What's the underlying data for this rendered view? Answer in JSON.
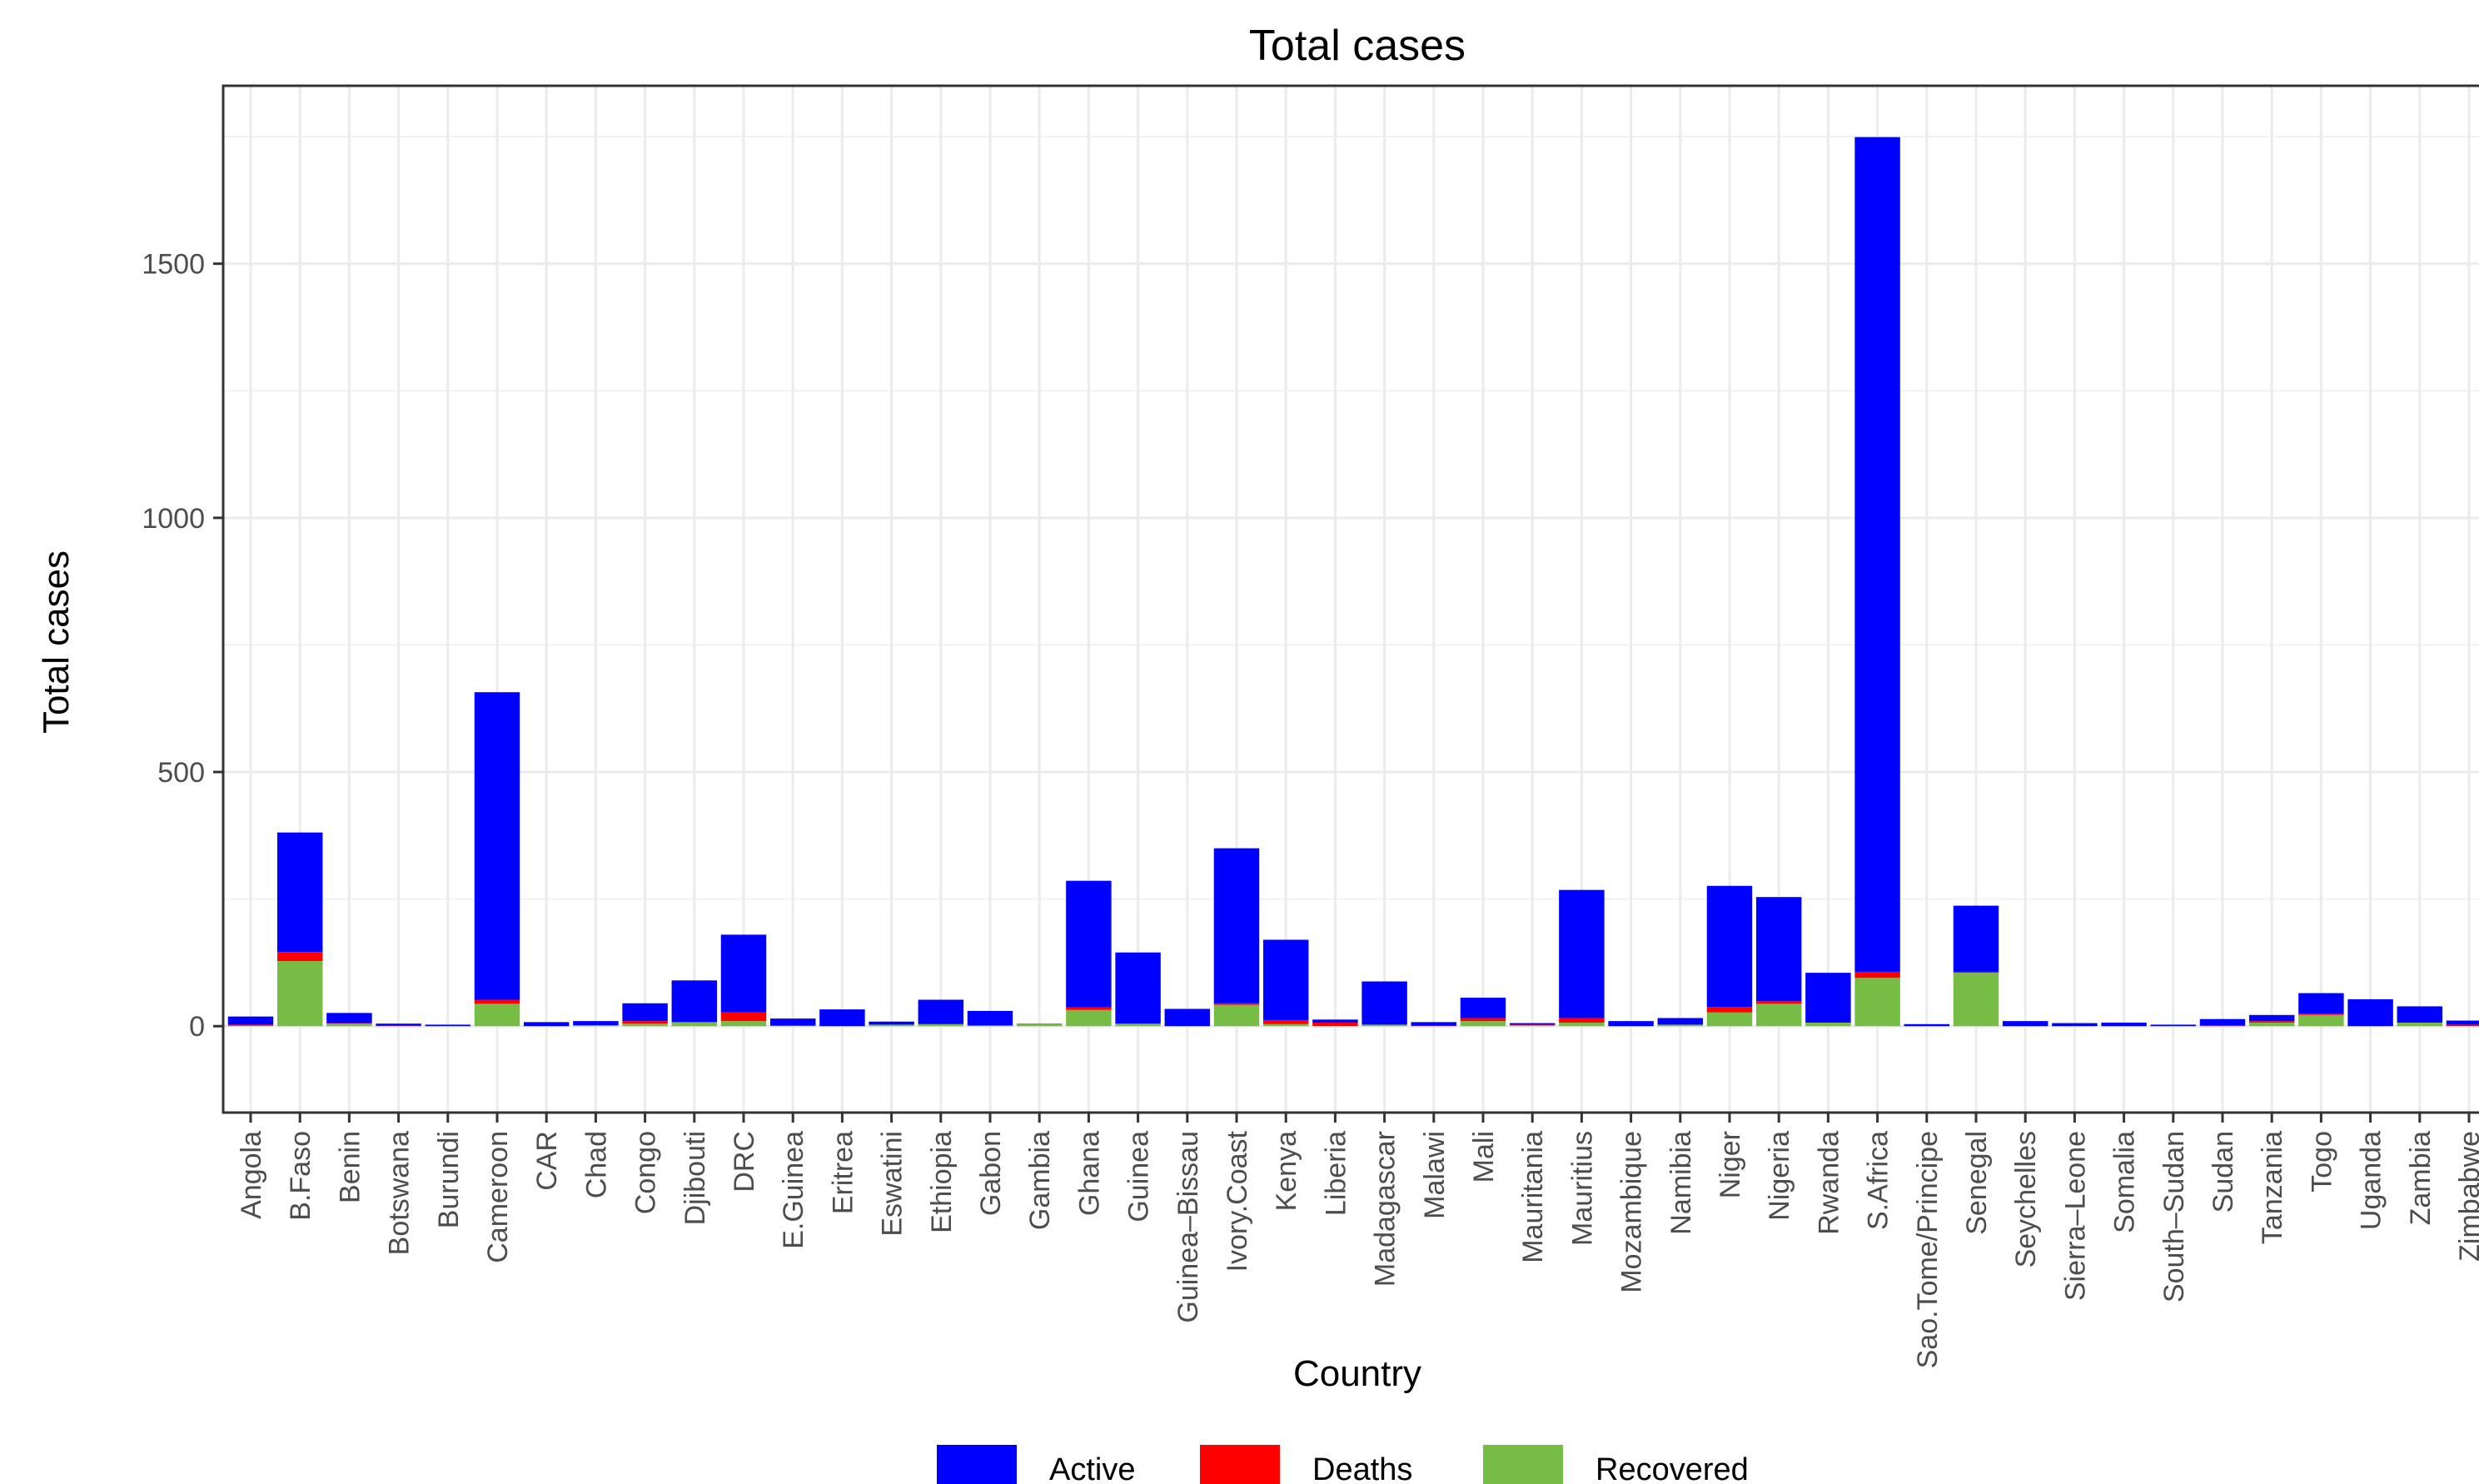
{
  "chart_data": {
    "type": "bar",
    "stacked": true,
    "title": "Total cases",
    "xlabel": "Country",
    "ylabel": "Total cases",
    "ylim": [
      -170,
      1850
    ],
    "yticks": [
      "0",
      "500",
      "1000",
      "1500"
    ],
    "grid": true,
    "legend_position": "bottom",
    "categories": [
      "Angola",
      "B.Faso",
      "Benin",
      "Botswana",
      "Burundi",
      "Cameroon",
      "CAR",
      "Chad",
      "Congo",
      "Djibouti",
      "DRC",
      "E.Guinea",
      "Eritrea",
      "Eswatini",
      "Ethiopia",
      "Gabon",
      "Gambia",
      "Ghana",
      "Guinea",
      "Guinea–Bissau",
      "Ivory.Coast",
      "Kenya",
      "Liberia",
      "Madagascar",
      "Malawi",
      "Mali",
      "Mauritania",
      "Mauritius",
      "Mozambique",
      "Namibia",
      "Niger",
      "Nigeria",
      "Rwanda",
      "S.Africa",
      "Sao.Tome/Principe",
      "Senegal",
      "Seychelles",
      "Sierra–Leone",
      "Somalia",
      "South–Sudan",
      "Sudan",
      "Tanzania",
      "Togo",
      "Uganda",
      "Zambia",
      "Zimbabwe"
    ],
    "series": [
      {
        "name": "Recovered",
        "color": "#77bc45",
        "values": [
          1,
          128,
          5,
          0,
          0,
          44,
          0,
          2,
          5,
          8,
          10,
          1,
          0,
          3,
          4,
          1,
          4,
          32,
          5,
          0,
          42,
          4,
          0,
          3,
          0,
          10,
          2,
          7,
          0,
          3,
          27,
          44,
          7,
          95,
          0,
          105,
          0,
          0,
          0,
          0,
          0,
          7,
          22,
          0,
          7,
          0
        ]
      },
      {
        "name": "Deaths",
        "color": "#ff0000",
        "values": [
          2,
          18,
          1,
          1,
          0,
          8,
          0,
          0,
          5,
          0,
          17,
          0,
          0,
          0,
          0,
          1,
          1,
          5,
          0,
          0,
          3,
          8,
          7,
          0,
          1,
          6,
          1,
          9,
          0,
          0,
          11,
          5,
          0,
          12,
          0,
          2,
          0,
          0,
          0,
          0,
          2,
          3,
          3,
          0,
          0,
          3
        ]
      },
      {
        "name": "Active",
        "color": "#0000ff",
        "values": [
          16,
          235,
          20,
          4,
          3,
          605,
          8,
          8,
          35,
          82,
          153,
          14,
          33,
          6,
          48,
          28,
          0,
          249,
          140,
          34,
          305,
          158,
          6,
          85,
          7,
          40,
          3,
          252,
          10,
          13,
          238,
          205,
          98,
          1642,
          4,
          130,
          10,
          6,
          7,
          3,
          12,
          12,
          40,
          53,
          32,
          8
        ]
      }
    ]
  }
}
